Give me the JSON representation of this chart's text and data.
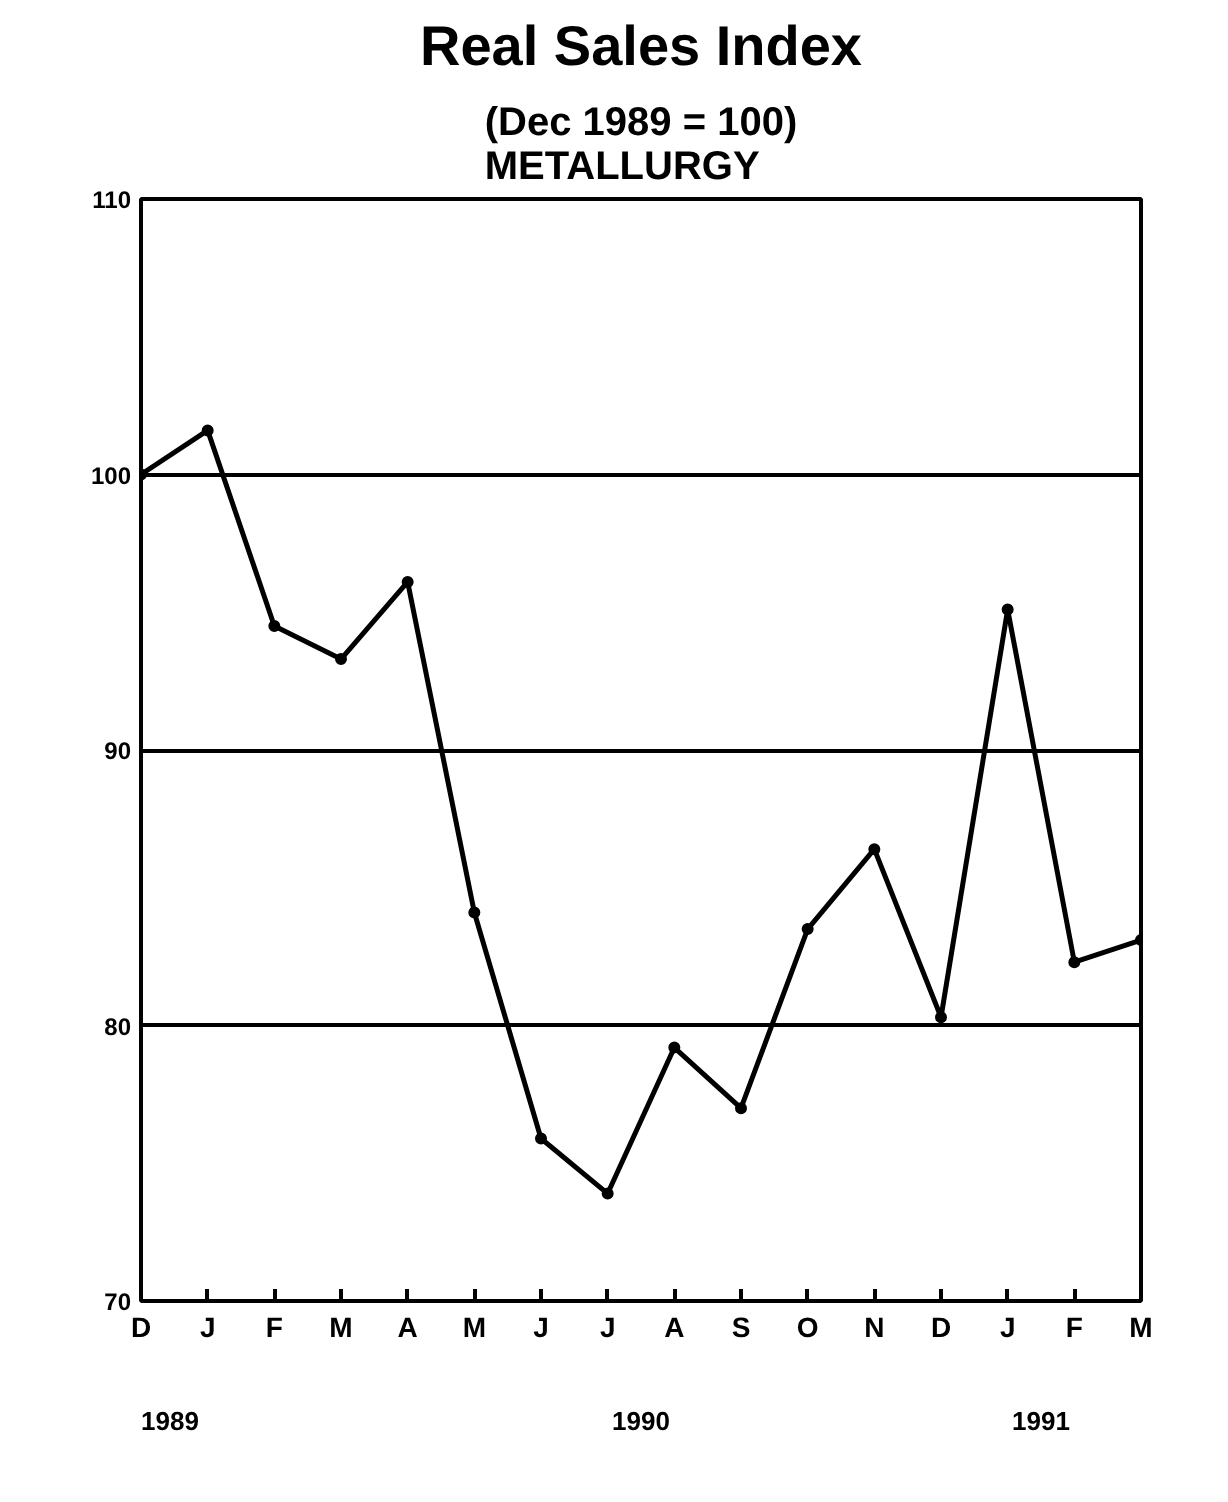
{
  "chart_data": {
    "type": "line",
    "title": "Real Sales Index",
    "subtitle": "(Dec 1989 = 100)\nMETALLURGY",
    "categories": [
      "D",
      "J",
      "F",
      "M",
      "A",
      "M",
      "J",
      "J",
      "A",
      "S",
      "O",
      "N",
      "D",
      "J",
      "F",
      "M"
    ],
    "series": [
      {
        "color": "#000000",
        "values": [
          100,
          101.6,
          94.5,
          93.3,
          96.1,
          84.1,
          75.9,
          73.9,
          79.2,
          77.0,
          83.5,
          86.4,
          80.3,
          95.1,
          82.3,
          83.1
        ]
      }
    ],
    "ylim": [
      70,
      110
    ],
    "yticks": [
      70,
      80,
      90,
      100,
      110
    ],
    "grid": "y",
    "marker": "circle",
    "line_style": "solid",
    "annotations": [
      "1989",
      "1990",
      "1991"
    ]
  }
}
